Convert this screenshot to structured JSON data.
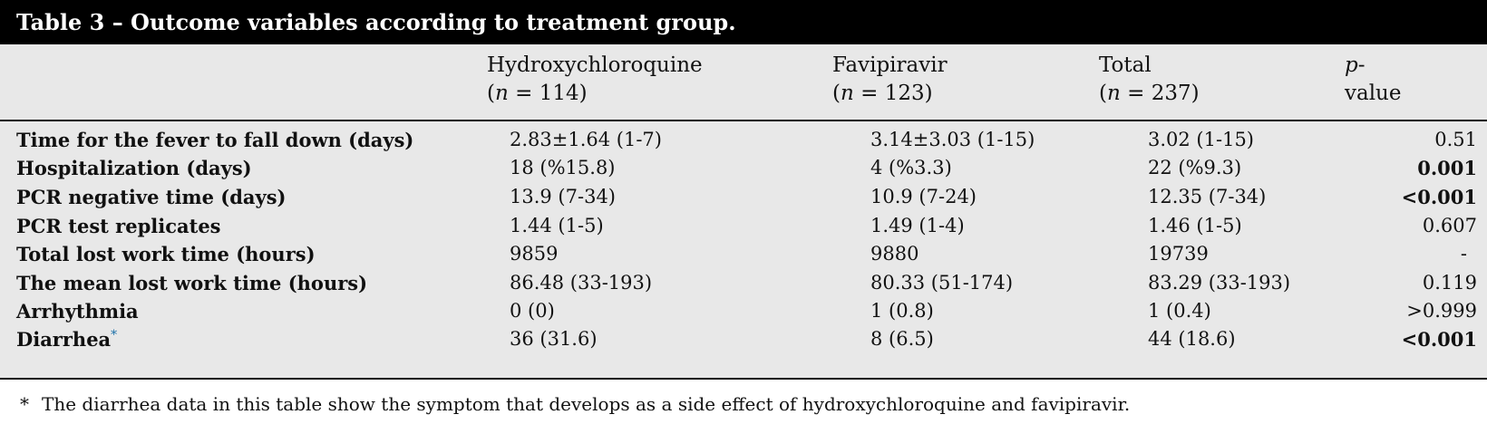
{
  "title": "Table 3 – Outcome variables according to treatment group.",
  "columns": [
    {
      "name": "Hydroxychloroquine",
      "n_prefix": "(",
      "n_italic": "n",
      "n_value": " = 114)"
    },
    {
      "name": "Favipiravir",
      "n_prefix": "(",
      "n_italic": "n",
      "n_value": " = 123)"
    },
    {
      "name": "Total",
      "n_prefix": "(",
      "n_italic": "n",
      "n_value": " = 237)"
    }
  ],
  "pvalue_header": {
    "line1_italic": "p",
    "line1_rest": "-",
    "line2": "value"
  },
  "rows": [
    {
      "label": "Time for the fever to fall down (days)",
      "hcq": "2.83±1.64 (1-7)",
      "fav": "3.14±3.03 (1-15)",
      "total": "3.02 (1-15)",
      "p": "0.51",
      "p_bold": false
    },
    {
      "label": "Hospitalization (days)",
      "hcq": "18 (%15.8)",
      "fav": "4 (%3.3)",
      "total": "22 (%9.3)",
      "p": "0.001",
      "p_bold": true
    },
    {
      "label": "PCR negative time (days)",
      "hcq": "13.9 (7-34)",
      "fav": "10.9 (7-24)",
      "total": "12.35 (7-34)",
      "p": "<0.001",
      "p_bold": true
    },
    {
      "label": "PCR test replicates",
      "hcq": "1.44 (1-5)",
      "fav": "1.49 (1-4)",
      "total": "1.46 (1-5)",
      "p": "0.607",
      "p_bold": false
    },
    {
      "label": "Total lost work time (hours)",
      "hcq": "9859",
      "fav": "9880",
      "total": "19739",
      "p": "-",
      "p_bold": false
    },
    {
      "label": "The mean lost work time (hours)",
      "hcq": "86.48 (33-193)",
      "fav": "80.33 (51-174)",
      "total": "83.29 (33-193)",
      "p": "0.119",
      "p_bold": false
    },
    {
      "label": "Arrhythmia",
      "hcq": "0 (0)",
      "fav": "1 (0.8)",
      "total": "1 (0.4)",
      "p": ">0.999",
      "p_bold": false
    },
    {
      "label": "Diarrhea",
      "label_sup": "*",
      "hcq": "36 (31.6)",
      "fav": "8 (6.5)",
      "total": "44 (18.6)",
      "p": "<0.001",
      "p_bold": true
    }
  ],
  "footnote": {
    "marker": "*",
    "text": "The diarrhea data in this table show the symptom that develops as a side effect of hydroxychloroquine and favipiravir."
  },
  "colors": {
    "title_bg": "#000000",
    "table_bg": "#e8e8e8",
    "footnote_link": "#1a6fa8"
  }
}
